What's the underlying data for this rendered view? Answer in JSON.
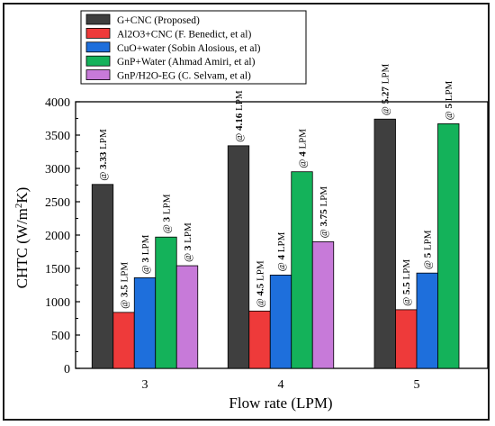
{
  "chart_data": {
    "type": "bar",
    "title": "",
    "xlabel": "Flow rate (LPM)",
    "ylabel": "CHTC (W/m²K)",
    "ylabel_parts": {
      "main": "CHTC (W/m",
      "sup": "2",
      "tail": "K)"
    },
    "ylim": [
      0,
      4000
    ],
    "yticks": [
      "0",
      "500",
      "1000",
      "1500",
      "2000",
      "2500",
      "3000",
      "3500",
      "4000"
    ],
    "categories": [
      "3",
      "4",
      "5"
    ],
    "legend_position": "top-left",
    "series": [
      {
        "name": "G+CNC (Proposed)",
        "color": "#3f3f3f",
        "values": [
          2760,
          3340,
          3740
        ],
        "labels": [
          {
            "at": "@",
            "val": "3.33",
            "unit": "LPM"
          },
          {
            "at": "@",
            "val": "4.16",
            "unit": "LPM"
          },
          {
            "at": "@",
            "val": "5.27",
            "unit": "LPM"
          }
        ]
      },
      {
        "name": "Al2O3+CNC (F. Benedict, et al)",
        "color": "#ee3a3a",
        "values": [
          840,
          860,
          880
        ],
        "labels": [
          {
            "at": "@",
            "val": "3.5",
            "unit": "LPM"
          },
          {
            "at": "@",
            "val": "4.5",
            "unit": "LPM"
          },
          {
            "at": "@",
            "val": "5.5",
            "unit": "LPM"
          }
        ]
      },
      {
        "name": "CuO+water (Sobin Alosious, et al)",
        "color": "#1e6fdc",
        "values": [
          1360,
          1400,
          1430
        ],
        "labels": [
          {
            "at": "@",
            "val": "3",
            "unit": "LPM"
          },
          {
            "at": "@",
            "val": "4",
            "unit": "LPM"
          },
          {
            "at": "@",
            "val": "5",
            "unit": "LPM"
          }
        ]
      },
      {
        "name": "GnP+Water (Ahmad Amiri, et al)",
        "color": "#14b25a",
        "values": [
          1970,
          2950,
          3670
        ],
        "labels": [
          {
            "at": "@",
            "val": "3",
            "unit": "LPM"
          },
          {
            "at": "@",
            "val": "4",
            "unit": "LPM"
          },
          {
            "at": "@",
            "val": "5",
            "unit": "LPM"
          }
        ]
      },
      {
        "name": "GnP/H2O-EG (C. Selvam, et al)",
        "color": "#c77ad9",
        "values": [
          1540,
          1900,
          null
        ],
        "labels": [
          {
            "at": "@",
            "val": "3",
            "unit": "LPM"
          },
          {
            "at": "@",
            "val": "3.75",
            "unit": "LPM"
          },
          null
        ]
      }
    ]
  }
}
